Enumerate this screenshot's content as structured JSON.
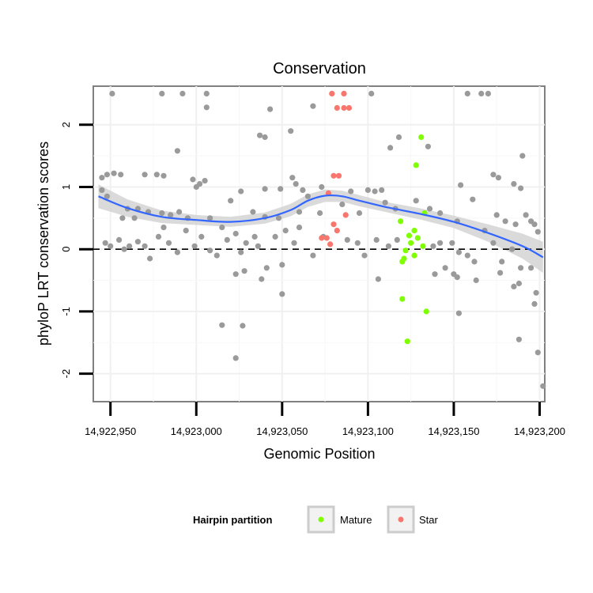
{
  "chart_data": {
    "type": "scatter",
    "title": "Conservation",
    "xlabel": "Genomic Position",
    "ylabel": "phyloP LRT conservation scores",
    "xlim": [
      14922940,
      14923203
    ],
    "ylim": [
      -2.45,
      2.62
    ],
    "x_ticks": [
      14922950,
      14923000,
      14923050,
      14923100,
      14923150,
      14923200
    ],
    "x_tick_labels": [
      "14,922,950",
      "14,923,000",
      "14,923,050",
      "14,923,100",
      "14,923,150",
      "14,923,200"
    ],
    "y_ticks": [
      -2,
      -1,
      0,
      1,
      2
    ],
    "y_tick_labels": [
      "-2",
      "-1",
      "0",
      "1",
      "2"
    ],
    "grid": true,
    "reference_line": {
      "y": 0,
      "style": "dashed"
    },
    "legend": {
      "title": "Hairpin partition",
      "position": "bottom",
      "entries": [
        {
          "label": "Mature",
          "color": "#7fff00"
        },
        {
          "label": "Star",
          "color": "#f8766d"
        }
      ]
    },
    "colors": {
      "background_points": "#9a9a9a",
      "mature": "#7fff00",
      "star": "#f8766d",
      "smooth": "#3366ff",
      "band": "#d3d3d3"
    },
    "series": [
      {
        "color": "#9a9a9a",
        "points": [
          [
            14922951,
            2.5
          ],
          [
            14922980,
            2.5
          ],
          [
            14922992,
            2.5
          ],
          [
            14923006,
            2.5
          ],
          [
            14923006,
            2.28
          ],
          [
            14923102,
            2.5
          ],
          [
            14923158,
            2.5
          ],
          [
            14923166,
            2.5
          ],
          [
            14923170,
            2.5
          ],
          [
            14923043,
            2.25
          ],
          [
            14923068,
            2.3
          ],
          [
            14923037,
            1.83
          ],
          [
            14923040,
            1.8
          ],
          [
            14923055,
            1.9
          ],
          [
            14923113,
            1.63
          ],
          [
            14923118,
            1.8
          ],
          [
            14923135,
            1.65
          ],
          [
            14922989,
            1.58
          ],
          [
            14923190,
            1.5
          ],
          [
            14922945,
            1.15
          ],
          [
            14922948,
            1.2
          ],
          [
            14922952,
            1.22
          ],
          [
            14922956,
            1.2
          ],
          [
            14922970,
            1.2
          ],
          [
            14922977,
            1.2
          ],
          [
            14922981,
            1.18
          ],
          [
            14922998,
            1.12
          ],
          [
            14923000,
            1.0
          ],
          [
            14923002,
            1.05
          ],
          [
            14923005,
            1.1
          ],
          [
            14923026,
            0.93
          ],
          [
            14923040,
            0.97
          ],
          [
            14923049,
            0.97
          ],
          [
            14923056,
            1.15
          ],
          [
            14923058,
            1.05
          ],
          [
            14923062,
            0.95
          ],
          [
            14923065,
            0.85
          ],
          [
            14923073,
            1.0
          ],
          [
            14923090,
            0.93
          ],
          [
            14923100,
            0.95
          ],
          [
            14923104,
            0.93
          ],
          [
            14923108,
            0.95
          ],
          [
            14923116,
            0.65
          ],
          [
            14923136,
            0.65
          ],
          [
            14923154,
            1.03
          ],
          [
            14923173,
            1.2
          ],
          [
            14923176,
            1.15
          ],
          [
            14923185,
            1.05
          ],
          [
            14923189,
            0.98
          ],
          [
            14922945,
            0.95
          ],
          [
            14922948,
            0.85
          ],
          [
            14922957,
            0.5
          ],
          [
            14922960,
            0.65
          ],
          [
            14922964,
            0.5
          ],
          [
            14922966,
            0.65
          ],
          [
            14922972,
            0.6
          ],
          [
            14922980,
            0.58
          ],
          [
            14922985,
            0.55
          ],
          [
            14922990,
            0.6
          ],
          [
            14922995,
            0.5
          ],
          [
            14923008,
            0.5
          ],
          [
            14923015,
            0.35
          ],
          [
            14923020,
            0.78
          ],
          [
            14923033,
            0.6
          ],
          [
            14923040,
            0.52
          ],
          [
            14923048,
            0.5
          ],
          [
            14923060,
            0.6
          ],
          [
            14923072,
            0.58
          ],
          [
            14923085,
            0.72
          ],
          [
            14923095,
            0.58
          ],
          [
            14923110,
            0.75
          ],
          [
            14923128,
            0.78
          ],
          [
            14923142,
            0.58
          ],
          [
            14923152,
            0.45
          ],
          [
            14923161,
            0.8
          ],
          [
            14923175,
            0.55
          ],
          [
            14923180,
            0.45
          ],
          [
            14923186,
            0.4
          ],
          [
            14923192,
            0.55
          ],
          [
            14923195,
            0.45
          ],
          [
            14923197,
            0.4
          ],
          [
            14923199,
            0.28
          ],
          [
            14922947,
            0.1
          ],
          [
            14922950,
            0.05
          ],
          [
            14922955,
            0.15
          ],
          [
            14922958,
            0.0
          ],
          [
            14922961,
            0.05
          ],
          [
            14922966,
            0.12
          ],
          [
            14922970,
            0.05
          ],
          [
            14922973,
            -0.15
          ],
          [
            14922978,
            0.2
          ],
          [
            14922981,
            0.35
          ],
          [
            14922984,
            0.1
          ],
          [
            14922989,
            -0.05
          ],
          [
            14922994,
            0.3
          ],
          [
            14922999,
            0.05
          ],
          [
            14923003,
            0.2
          ],
          [
            14923008,
            -0.02
          ],
          [
            14923012,
            -0.1
          ],
          [
            14923018,
            0.15
          ],
          [
            14923023,
            0.25
          ],
          [
            14923026,
            -0.05
          ],
          [
            14923029,
            0.1
          ],
          [
            14923034,
            0.2
          ],
          [
            14923036,
            0.05
          ],
          [
            14923041,
            -0.3
          ],
          [
            14923046,
            0.2
          ],
          [
            14923052,
            0.3
          ],
          [
            14923057,
            0.1
          ],
          [
            14923060,
            0.35
          ],
          [
            14923068,
            -0.1
          ],
          [
            14923074,
            0.2
          ],
          [
            14923088,
            0.15
          ],
          [
            14923094,
            0.1
          ],
          [
            14923098,
            -0.1
          ],
          [
            14923105,
            0.15
          ],
          [
            14923112,
            0.05
          ],
          [
            14923117,
            0.15
          ],
          [
            14923138,
            0.05
          ],
          [
            14923142,
            0.1
          ],
          [
            14923145,
            -0.3
          ],
          [
            14923149,
            0.1
          ],
          [
            14923153,
            -0.05
          ],
          [
            14923158,
            -0.1
          ],
          [
            14923162,
            -0.2
          ],
          [
            14923168,
            0.3
          ],
          [
            14923173,
            0.1
          ],
          [
            14923178,
            -0.2
          ],
          [
            14923184,
            0.0
          ],
          [
            14923189,
            -0.3
          ],
          [
            14923023,
            -0.4
          ],
          [
            14923028,
            -0.35
          ],
          [
            14923038,
            -0.48
          ],
          [
            14923050,
            -0.25
          ],
          [
            14923106,
            -0.48
          ],
          [
            14923139,
            -0.4
          ],
          [
            14923150,
            -0.4
          ],
          [
            14923152,
            -0.45
          ],
          [
            14923163,
            -0.5
          ],
          [
            14923177,
            -0.38
          ],
          [
            14923185,
            -0.6
          ],
          [
            14923188,
            -0.55
          ],
          [
            14923195,
            -0.3
          ],
          [
            14923198,
            -0.7
          ],
          [
            14923050,
            -0.72
          ],
          [
            14923153,
            -1.03
          ],
          [
            14923197,
            -0.88
          ],
          [
            14923015,
            -1.22
          ],
          [
            14923027,
            -1.23
          ],
          [
            14923188,
            -1.45
          ],
          [
            14923199,
            -1.66
          ],
          [
            14923023,
            -1.75
          ],
          [
            14923202,
            -2.2
          ]
        ]
      },
      {
        "name": "Mature",
        "color": "#7fff00",
        "points": [
          [
            14923131,
            1.8
          ],
          [
            14923128,
            1.35
          ],
          [
            14923133,
            0.58
          ],
          [
            14923119,
            0.45
          ],
          [
            14923127,
            0.3
          ],
          [
            14923124,
            0.22
          ],
          [
            14923129,
            0.18
          ],
          [
            14923125,
            0.1
          ],
          [
            14923132,
            0.05
          ],
          [
            14923122,
            -0.02
          ],
          [
            14923127,
            -0.1
          ],
          [
            14923121,
            -0.15
          ],
          [
            14923120,
            -0.2
          ],
          [
            14923120,
            -0.8
          ],
          [
            14923134,
            -1.0
          ],
          [
            14923123,
            -1.48
          ]
        ]
      },
      {
        "name": "Star",
        "color": "#f8766d",
        "points": [
          [
            14923079,
            2.5
          ],
          [
            14923086,
            2.5
          ],
          [
            14923082,
            2.27
          ],
          [
            14923086,
            2.27
          ],
          [
            14923089,
            2.27
          ],
          [
            14923080,
            1.18
          ],
          [
            14923083,
            1.18
          ],
          [
            14923077,
            0.9
          ],
          [
            14923087,
            0.55
          ],
          [
            14923080,
            0.4
          ],
          [
            14923082,
            0.3
          ],
          [
            14923076,
            0.18
          ],
          [
            14923078,
            0.08
          ],
          [
            14923073,
            0.18
          ]
        ]
      }
    ],
    "smooth": {
      "x": [
        14922943,
        14922960,
        14922980,
        14923000,
        14923020,
        14923040,
        14923055,
        14923065,
        14923075,
        14923085,
        14923095,
        14923110,
        14923130,
        14923150,
        14923170,
        14923190,
        14923202
      ],
      "y": [
        0.85,
        0.66,
        0.52,
        0.47,
        0.44,
        0.5,
        0.63,
        0.78,
        0.86,
        0.85,
        0.78,
        0.68,
        0.57,
        0.44,
        0.26,
        0.05,
        -0.13
      ],
      "band_low": [
        0.66,
        0.52,
        0.42,
        0.39,
        0.36,
        0.41,
        0.53,
        0.68,
        0.76,
        0.76,
        0.69,
        0.6,
        0.48,
        0.34,
        0.12,
        -0.15,
        -0.38
      ],
      "band_high": [
        1.04,
        0.8,
        0.62,
        0.55,
        0.52,
        0.59,
        0.73,
        0.88,
        0.96,
        0.94,
        0.87,
        0.76,
        0.66,
        0.54,
        0.4,
        0.25,
        0.12
      ]
    }
  }
}
